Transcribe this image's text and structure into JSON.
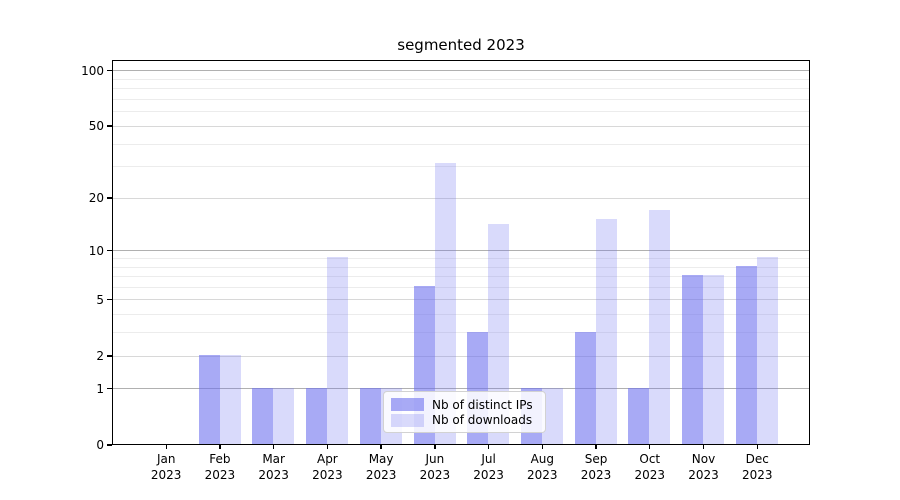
{
  "chart_data": {
    "type": "bar",
    "title": "segmented 2023",
    "categories": [
      "Jan",
      "Feb",
      "Mar",
      "Apr",
      "May",
      "Jun",
      "Jul",
      "Aug",
      "Sep",
      "Oct",
      "Nov",
      "Dec"
    ],
    "year_suffix": "2023",
    "series": [
      {
        "name": "Nb of distinct IPs",
        "color": "rgba(110,113,238,0.60)",
        "values": [
          0,
          2,
          1,
          1,
          1,
          6,
          3,
          1,
          3,
          1,
          7,
          8
        ]
      },
      {
        "name": "Nb of downloads",
        "color": "rgba(110,113,238,0.26)",
        "values": [
          0,
          2,
          1,
          9,
          1,
          31,
          14,
          1,
          15,
          17,
          7,
          9
        ]
      }
    ],
    "yscale": "log1p",
    "yticks": [
      0,
      1,
      2,
      5,
      10,
      20,
      50,
      100
    ],
    "ylim": [
      0,
      113
    ],
    "grid": {
      "major_values": [
        1,
        10,
        100
      ],
      "mid_values": [
        2,
        5,
        20,
        50
      ],
      "minor_values": [
        3,
        4,
        6,
        7,
        8,
        9,
        30,
        40,
        60,
        70,
        80,
        90
      ],
      "major_color": "#b0b0b0",
      "mid_color": "#d8d8d8",
      "minor_color": "#ececec"
    },
    "legend_position": "inside-bottom-center",
    "axis_color": "#000000",
    "background_color": "#ffffff"
  }
}
